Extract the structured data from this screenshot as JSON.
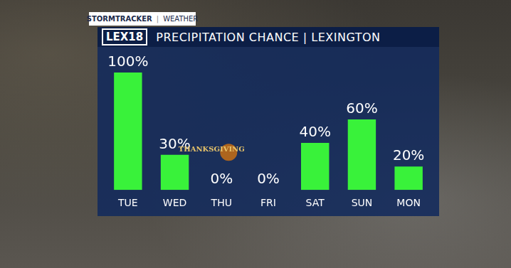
{
  "header": {
    "brand": "STORMTRACKER",
    "section": "WEATHER",
    "logo": "LEX18"
  },
  "chart_data": {
    "type": "bar",
    "title": "PRECIPITATION CHANCE | LEXINGTON",
    "categories": [
      "TUE",
      "WED",
      "THU",
      "FRI",
      "SAT",
      "SUN",
      "MON"
    ],
    "values": [
      100,
      30,
      0,
      0,
      40,
      60,
      20
    ],
    "value_labels": [
      "100%",
      "30%",
      "0%",
      "0%",
      "40%",
      "60%",
      "20%"
    ],
    "color": "#39f23a",
    "ylim": [
      0,
      100
    ],
    "grid": false,
    "data_labels": true,
    "tick_labels": "x",
    "annotations": [
      {
        "text": "THANKSGIVING",
        "category": "THU"
      }
    ]
  }
}
